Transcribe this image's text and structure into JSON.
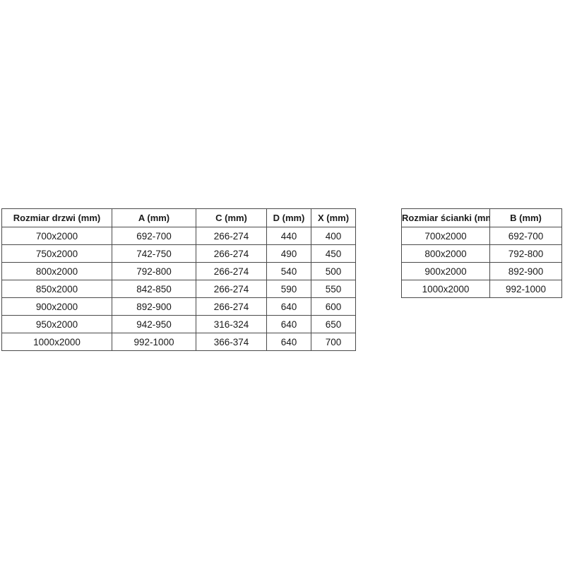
{
  "page": {
    "background": "#ffffff"
  },
  "colors": {
    "table_border": "#4a4a4a",
    "text": "#1a1a1a"
  },
  "tables": {
    "doors": {
      "name": "door-sizes-table",
      "headers": [
        "Rozmiar drzwi (mm)",
        "A (mm)",
        "C (mm)",
        "D (mm)",
        "X (mm)"
      ],
      "rows": [
        [
          "700x2000",
          "692-700",
          "266-274",
          "440",
          "400"
        ],
        [
          "750x2000",
          "742-750",
          "266-274",
          "490",
          "450"
        ],
        [
          "800x2000",
          "792-800",
          "266-274",
          "540",
          "500"
        ],
        [
          "850x2000",
          "842-850",
          "266-274",
          "590",
          "550"
        ],
        [
          "900x2000",
          "892-900",
          "266-274",
          "640",
          "600"
        ],
        [
          "950x2000",
          "942-950",
          "316-324",
          "640",
          "650"
        ],
        [
          "1000x2000",
          "992-1000",
          "366-374",
          "640",
          "700"
        ]
      ]
    },
    "walls": {
      "name": "wall-sizes-table",
      "headers": [
        "Rozmiar ścianki (mm)",
        "B (mm)"
      ],
      "rows": [
        [
          "700x2000",
          "692-700"
        ],
        [
          "800x2000",
          "792-800"
        ],
        [
          "900x2000",
          "892-900"
        ],
        [
          "1000x2000",
          "992-1000"
        ]
      ]
    }
  }
}
